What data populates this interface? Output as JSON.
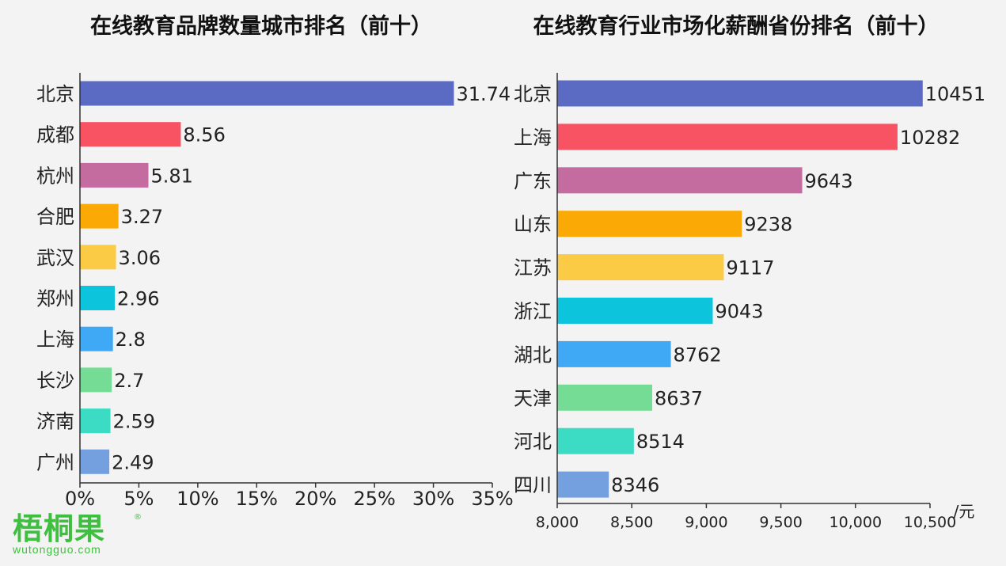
{
  "chart_data": [
    {
      "type": "bar",
      "orientation": "horizontal",
      "title": "在线教育品牌数量城市排名（前十）",
      "categories": [
        "北京",
        "成都",
        "杭州",
        "合肥",
        "武汉",
        "郑州",
        "上海",
        "长沙",
        "济南",
        "广州"
      ],
      "values": [
        31.74,
        8.56,
        5.81,
        3.27,
        3.06,
        2.96,
        2.8,
        2.7,
        2.59,
        2.49
      ],
      "value_labels": [
        "31.74",
        "8.56",
        "5.81",
        "3.27",
        "3.06",
        "2.96",
        "2.8",
        "2.7",
        "2.59",
        "2.49"
      ],
      "xlim": [
        0,
        35
      ],
      "xticks": [
        0,
        5,
        10,
        15,
        20,
        25,
        30,
        35
      ],
      "xtick_labels": [
        "0%",
        "5%",
        "10%",
        "15%",
        "20%",
        "25%",
        "30%",
        "35%"
      ],
      "xlabel": "",
      "colors": [
        "#5b6bc4",
        "#f75362",
        "#c46b9f",
        "#fbaa05",
        "#fccb45",
        "#0cc4dc",
        "#3fa9f5",
        "#74dc94",
        "#3cdcc4",
        "#74a0e0"
      ],
      "grid": false,
      "legend": "none"
    },
    {
      "type": "bar",
      "orientation": "horizontal",
      "title": "在线教育行业市场化薪酬省份排名（前十）",
      "categories": [
        "北京",
        "上海",
        "广东",
        "山东",
        "江苏",
        "浙江",
        "湖北",
        "天津",
        "河北",
        "四川"
      ],
      "values": [
        10451,
        10282,
        9643,
        9238,
        9117,
        9043,
        8762,
        8637,
        8514,
        8346
      ],
      "value_labels": [
        "10451",
        "10282",
        "9643",
        "9238",
        "9117",
        "9043",
        "8762",
        "8637",
        "8514",
        "8346"
      ],
      "xlim": [
        8000,
        10500
      ],
      "xticks": [
        8000,
        8500,
        9000,
        9500,
        10000,
        10500
      ],
      "xtick_labels": [
        "8,000",
        "8,500",
        "9,000",
        "9,500",
        "10,000",
        "10,500"
      ],
      "xlabel": "/元",
      "colors": [
        "#5b6bc4",
        "#f75362",
        "#c46b9f",
        "#fbaa05",
        "#fccb45",
        "#0cc4dc",
        "#3fa9f5",
        "#74dc94",
        "#3cdcc4",
        "#74a0e0"
      ],
      "grid": false,
      "legend": "none"
    }
  ],
  "logo": {
    "name": "梧桐果",
    "url": "wutongguo.com",
    "registered": "®"
  }
}
